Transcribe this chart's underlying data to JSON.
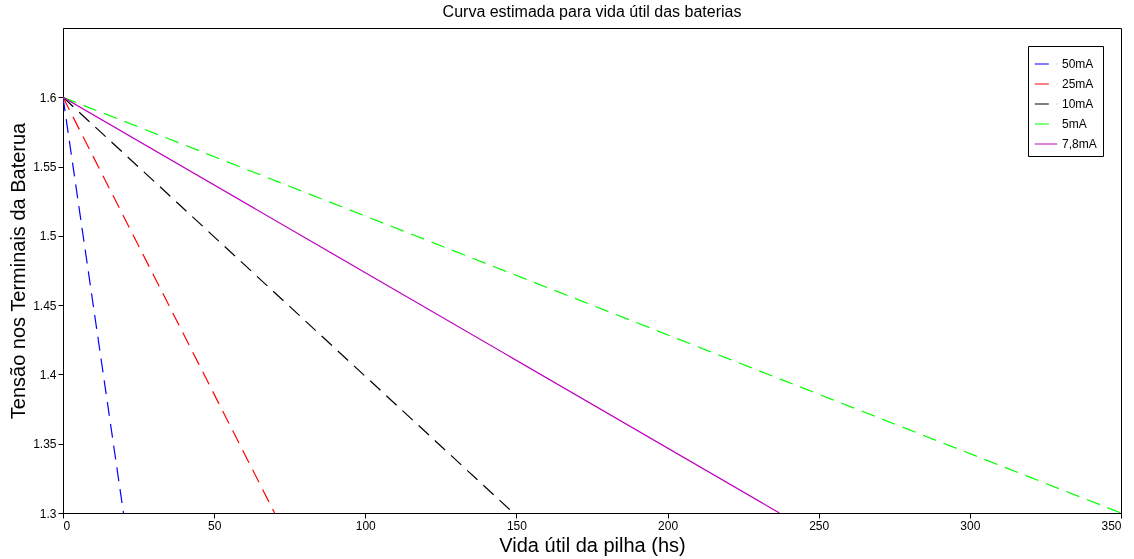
{
  "chart_data": {
    "type": "line",
    "title": "Curva estimada para vida útil das baterias",
    "xlabel": "Vida útil da pilha (hs)",
    "ylabel": "Tensão nos Terminais da Baterua",
    "xlim": [
      0,
      350
    ],
    "xticks": [
      0,
      50,
      100,
      150,
      200,
      250,
      300,
      350
    ],
    "ylim": [
      1.3,
      1.65
    ],
    "yticks": [
      {
        "value": 1.3,
        "label": "1.3"
      },
      1.35,
      {
        "value": 1.4,
        "label": "1.4"
      },
      1.45,
      {
        "value": 1.5,
        "label": "1.5"
      },
      1.55,
      {
        "value": 1.6,
        "label": "1.6"
      }
    ],
    "grid": false,
    "legend": "top right",
    "series": [
      {
        "name": "50mA",
        "color": "#0000ff",
        "line_style": "dashed",
        "x": [
          0,
          20
        ],
        "values": [
          1.6,
          1.3
        ]
      },
      {
        "name": "25mA",
        "color": "#ff0000",
        "line_style": "dashed",
        "x": [
          0,
          70
        ],
        "values": [
          1.6,
          1.3
        ]
      },
      {
        "name": "10mA",
        "color": "#000000",
        "line_style": "dashed",
        "x": [
          0,
          149
        ],
        "values": [
          1.6,
          1.3
        ]
      },
      {
        "name": "5mA",
        "color": "#00ff00",
        "line_style": "dashed",
        "x": [
          0,
          350
        ],
        "values": [
          1.6,
          1.3
        ]
      },
      {
        "name": "7,8mA",
        "color": "#bf00bf",
        "line_style": "solid",
        "x": [
          0,
          237
        ],
        "values": [
          1.6,
          1.3
        ]
      }
    ]
  }
}
